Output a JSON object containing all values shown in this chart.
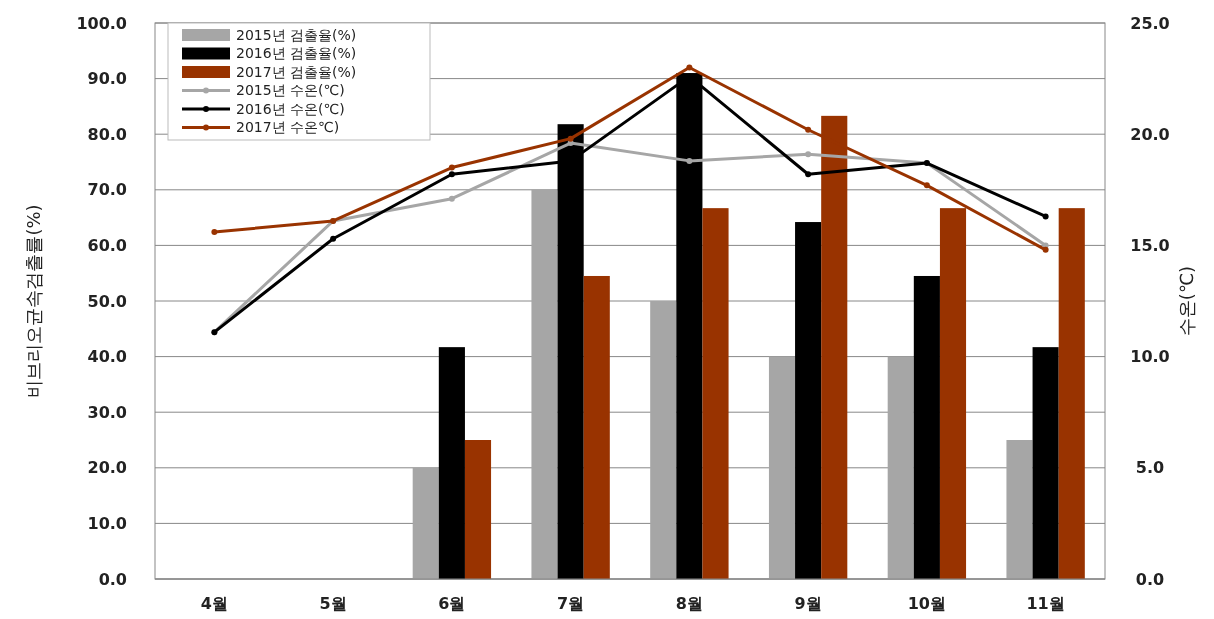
{
  "chart_data": {
    "type": "bar",
    "ylabel": "비브리오균속검출률(%)",
    "y2label": "수온(℃)",
    "categories": [
      "4월",
      "5월",
      "6월",
      "7월",
      "8월",
      "9월",
      "10월",
      "11월"
    ],
    "series": [
      {
        "name": "2015년 검출율(%)",
        "color": "#a6a6a6",
        "values": [
          null,
          null,
          20,
          70,
          50,
          40,
          40,
          25
        ]
      },
      {
        "name": "2016년 검출율(%)",
        "color": "#000000",
        "values": [
          null,
          null,
          41.7,
          81.8,
          91,
          64.2,
          54.5,
          41.7
        ]
      },
      {
        "name": "2017년 검출율(%)",
        "color": "#993300",
        "values": [
          null,
          null,
          25,
          54.5,
          66.7,
          83.3,
          66.7,
          66.7
        ]
      },
      {
        "name": "2015년 수온(℃)",
        "type": "line",
        "axis": "y2",
        "color": "#a6a6a6",
        "values": [
          11.1,
          16.1,
          17.1,
          19.6,
          18.8,
          19.1,
          18.7,
          15.0
        ]
      },
      {
        "name": "2016년 수온(℃)",
        "type": "line",
        "axis": "y2",
        "color": "#000000",
        "values": [
          11.1,
          15.3,
          18.2,
          18.8,
          22.6,
          18.2,
          18.7,
          16.3
        ]
      },
      {
        "name": "2017년 수온℃)",
        "type": "line",
        "axis": "y2",
        "color": "#993300",
        "values": [
          15.6,
          16.1,
          18.5,
          19.8,
          23.0,
          20.2,
          17.7,
          14.8
        ]
      }
    ],
    "ylim": [
      0,
      100
    ],
    "yticks": [
      {
        "value": 0,
        "label": "0.0"
      },
      {
        "value": 10,
        "label": "10.0"
      },
      {
        "value": 20,
        "label": "20.0"
      },
      {
        "value": 30,
        "label": "30.0"
      },
      {
        "value": 40,
        "label": "40.0"
      },
      {
        "value": 50,
        "label": "50.0"
      },
      {
        "value": 60,
        "label": "60.0"
      },
      {
        "value": 70,
        "label": "70.0"
      },
      {
        "value": 80,
        "label": "80.0"
      },
      {
        "value": 90,
        "label": "90.0"
      },
      {
        "value": 100,
        "label": "100.0"
      }
    ],
    "y2lim": [
      0,
      25
    ],
    "y2ticks": [
      {
        "value": 0,
        "label": "0.0"
      },
      {
        "value": 5,
        "label": "5.0"
      },
      {
        "value": 10,
        "label": "10.0"
      },
      {
        "value": 15,
        "label": "15.0"
      },
      {
        "value": 20,
        "label": "20.0"
      },
      {
        "value": 25,
        "label": "25.0"
      }
    ],
    "grid": "y",
    "legend": "top left",
    "marker": "circle"
  }
}
